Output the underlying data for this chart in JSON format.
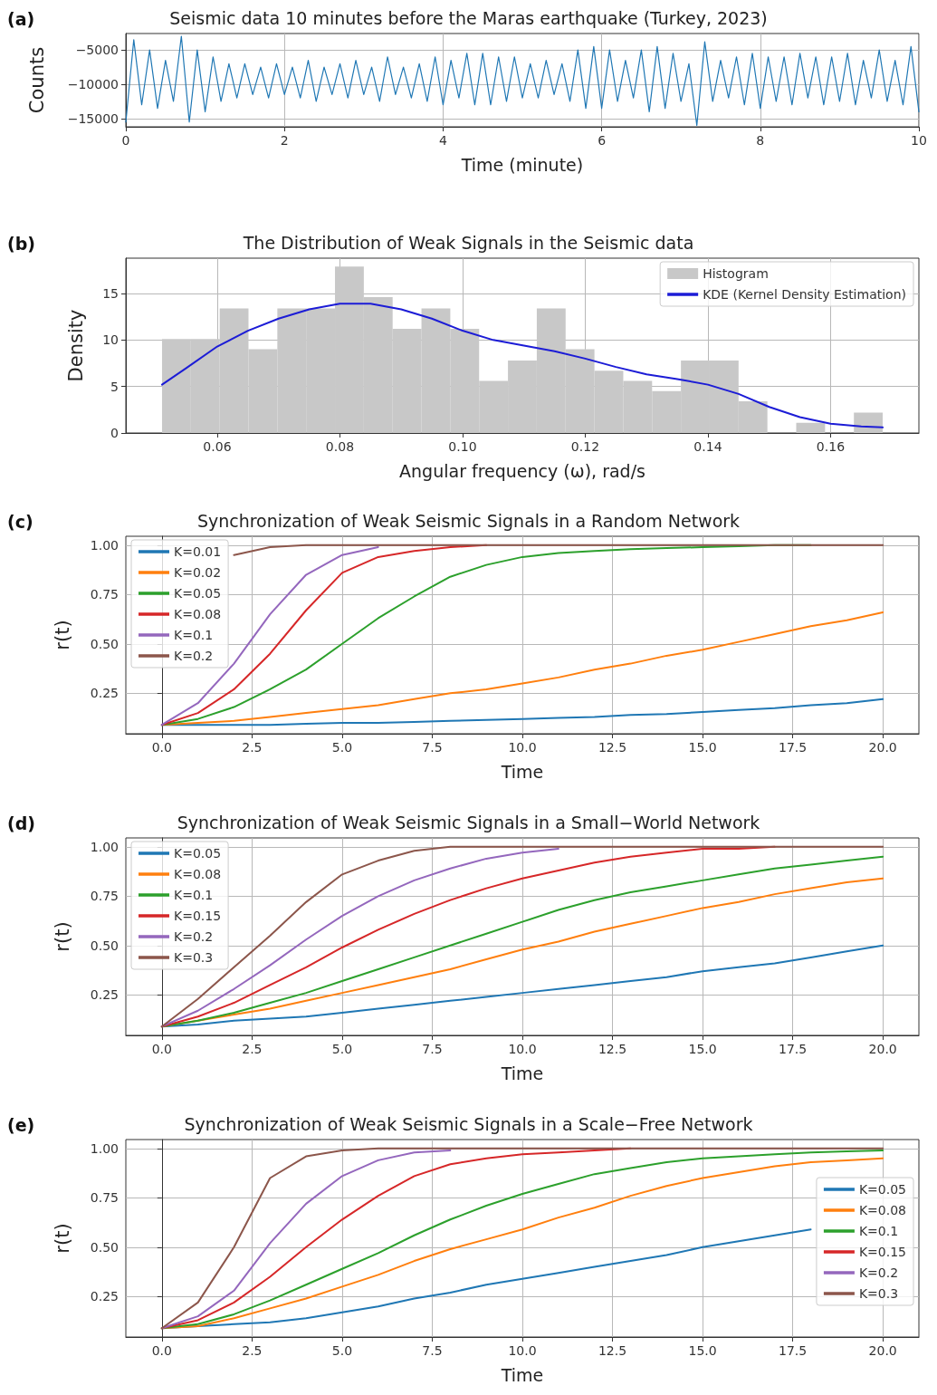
{
  "chart_data": [
    {
      "type": "line",
      "title": "Seismic data 10 minutes before the Maras earthquake (Turkey, 2023)",
      "xlabel": "Time (minute)",
      "ylabel": "Counts",
      "annotations": [
        "(a)"
      ],
      "xlim": [
        0,
        10
      ],
      "ylim": [
        -16200,
        -2600
      ],
      "xticks": [
        0,
        2,
        4,
        6,
        8,
        10
      ],
      "yticks": [
        {
          "value": -15000,
          "label": "−15000"
        },
        {
          "value": -10000,
          "label": "−10000"
        },
        {
          "value": -5000,
          "label": "−5000"
        }
      ],
      "grid": true,
      "x": [
        0,
        0.1,
        0.2,
        0.3,
        0.4,
        0.5,
        0.6,
        0.7,
        0.8,
        0.9,
        1,
        1.1,
        1.2,
        1.3,
        1.4,
        1.5,
        1.6,
        1.7,
        1.8,
        1.9,
        2,
        2.1,
        2.2,
        2.3,
        2.4,
        2.5,
        2.6,
        2.7,
        2.8,
        2.9,
        3,
        3.1,
        3.2,
        3.3,
        3.4,
        3.5,
        3.6,
        3.7,
        3.8,
        3.9,
        4,
        4.1,
        4.2,
        4.3,
        4.4,
        4.5,
        4.6,
        4.7,
        4.8,
        4.9,
        5,
        5.1,
        5.2,
        5.3,
        5.4,
        5.5,
        5.6,
        5.7,
        5.8,
        5.9,
        6,
        6.1,
        6.2,
        6.3,
        6.4,
        6.5,
        6.6,
        6.7,
        6.8,
        6.9,
        7,
        7.1,
        7.2,
        7.3,
        7.4,
        7.5,
        7.6,
        7.7,
        7.8,
        7.9,
        8,
        8.1,
        8.2,
        8.3,
        8.4,
        8.5,
        8.6,
        8.7,
        8.8,
        8.9,
        9,
        9.1,
        9.2,
        9.3,
        9.4,
        9.5,
        9.6,
        9.7,
        9.8,
        9.9,
        10
      ],
      "series": [
        {
          "color": "#1f77b4",
          "values": [
            -15500,
            -3500,
            -13000,
            -5000,
            -13500,
            -6500,
            -12500,
            -3000,
            -15500,
            -5000,
            -14000,
            -6000,
            -12500,
            -7000,
            -12000,
            -7000,
            -11500,
            -7500,
            -12000,
            -7000,
            -11500,
            -7500,
            -12000,
            -6500,
            -12500,
            -7500,
            -11500,
            -7000,
            -12000,
            -6500,
            -11500,
            -7500,
            -12500,
            -6000,
            -11500,
            -7500,
            -12000,
            -7000,
            -12500,
            -6000,
            -13000,
            -6500,
            -12000,
            -5500,
            -13000,
            -5500,
            -13000,
            -6000,
            -12500,
            -6000,
            -12000,
            -7000,
            -12000,
            -6500,
            -11500,
            -7000,
            -12500,
            -5000,
            -13500,
            -4500,
            -13500,
            -5000,
            -12500,
            -6500,
            -12000,
            -5000,
            -14000,
            -4500,
            -13500,
            -5500,
            -12500,
            -7000,
            -16000,
            -3800,
            -12500,
            -6500,
            -12000,
            -6000,
            -13000,
            -5500,
            -13500,
            -6000,
            -12500,
            -6000,
            -13000,
            -5500,
            -12000,
            -6000,
            -13000,
            -6000,
            -12500,
            -5500,
            -13000,
            -6500,
            -12000,
            -5000,
            -12500,
            -6500,
            -13000,
            -4500,
            -14000
          ]
        }
      ]
    },
    {
      "type": "histogram",
      "title": "The Distribution of Weak Signals in the Seismic data",
      "xlabel": "Angular frequency (ω), rad/s",
      "ylabel": "Density",
      "annotations": [
        "(b)"
      ],
      "xlim": [
        0.0451,
        0.1744
      ],
      "ylim": [
        0,
        18.8
      ],
      "xticks": [
        {
          "value": 0.06,
          "label": "0.06"
        },
        {
          "value": 0.08,
          "label": "0.08"
        },
        {
          "value": 0.1,
          "label": "0.10"
        },
        {
          "value": 0.12,
          "label": "0.12"
        },
        {
          "value": 0.14,
          "label": "0.14"
        },
        {
          "value": 0.16,
          "label": "0.16"
        }
      ],
      "yticks": [
        0,
        5,
        10,
        15
      ],
      "grid": true,
      "legend": "top right",
      "bins": [
        0.051,
        0.0557,
        0.0604,
        0.0651,
        0.0698,
        0.0745,
        0.0792,
        0.0839,
        0.0886,
        0.0933,
        0.098,
        0.1027,
        0.1074,
        0.1121,
        0.1168,
        0.1215,
        0.1262,
        0.1309,
        0.1356,
        0.1403,
        0.145,
        0.1497,
        0.1544,
        0.1591,
        0.1638,
        0.1685
      ],
      "series": [
        {
          "name": "Histogram",
          "color": "#c8c8c8",
          "values": [
            10.1,
            10.1,
            13.4,
            9.0,
            13.4,
            13.4,
            17.9,
            14.6,
            11.2,
            13.4,
            11.2,
            5.6,
            7.8,
            13.4,
            9.0,
            6.7,
            5.6,
            4.5,
            7.8,
            7.8,
            3.4,
            0,
            1.1,
            0,
            2.2
          ]
        },
        {
          "name": "KDE (Kernel Density Estimation)",
          "type": "line",
          "color": "#1c1cd6",
          "x": [
            0.051,
            0.055,
            0.06,
            0.065,
            0.07,
            0.075,
            0.08,
            0.085,
            0.09,
            0.095,
            0.1,
            0.105,
            0.11,
            0.115,
            0.12,
            0.125,
            0.13,
            0.135,
            0.14,
            0.145,
            0.15,
            0.155,
            0.16,
            0.165,
            0.1685
          ],
          "values": [
            5.2,
            7,
            9.3,
            11,
            12.3,
            13.3,
            13.9,
            13.9,
            13.3,
            12.3,
            11,
            10,
            9.4,
            8.8,
            8,
            7.1,
            6.3,
            5.8,
            5.2,
            4.2,
            2.8,
            1.7,
            1.0,
            0.7,
            0.6
          ]
        }
      ]
    },
    {
      "type": "line",
      "title": "Synchronization of Weak Seismic Signals in a Random Network",
      "xlabel": "Time",
      "ylabel": "r(t)",
      "annotations": [
        "(c)"
      ],
      "xlim": [
        -1,
        21
      ],
      "ylim": [
        0.045,
        1.045
      ],
      "xticks": [
        {
          "value": 0,
          "label": "0.0"
        },
        {
          "value": 2.5,
          "label": "2.5"
        },
        {
          "value": 5,
          "label": "5.0"
        },
        {
          "value": 7.5,
          "label": "7.5"
        },
        {
          "value": 10,
          "label": "10.0"
        },
        {
          "value": 12.5,
          "label": "12.5"
        },
        {
          "value": 15,
          "label": "15.0"
        },
        {
          "value": 17.5,
          "label": "17.5"
        },
        {
          "value": 20,
          "label": "20.0"
        }
      ],
      "yticks": [
        {
          "value": 0.25,
          "label": "0.25"
        },
        {
          "value": 0.5,
          "label": "0.50"
        },
        {
          "value": 0.75,
          "label": "0.75"
        },
        {
          "value": 1,
          "label": "1.00"
        }
      ],
      "grid": true,
      "legend": "top left",
      "x": [
        0,
        1,
        2,
        3,
        4,
        5,
        6,
        7,
        8,
        9,
        10,
        11,
        12,
        13,
        14,
        15,
        16,
        17,
        18,
        19,
        20
      ],
      "series": [
        {
          "name": "K=0.01",
          "color": "#1f77b4",
          "values": [
            0.09,
            0.09,
            0.09,
            0.09,
            0.095,
            0.1,
            0.1,
            0.105,
            0.11,
            0.115,
            0.12,
            0.125,
            0.13,
            0.14,
            0.145,
            0.155,
            0.165,
            0.175,
            0.19,
            0.2,
            0.22
          ]
        },
        {
          "name": "K=0.02",
          "color": "#ff7f0e",
          "values": [
            0.09,
            0.1,
            0.11,
            0.13,
            0.15,
            0.17,
            0.19,
            0.22,
            0.25,
            0.27,
            0.3,
            0.33,
            0.37,
            0.4,
            0.44,
            0.47,
            0.51,
            0.55,
            0.59,
            0.62,
            0.66
          ]
        },
        {
          "name": "K=0.05",
          "color": "#2ca02c",
          "values": [
            0.09,
            0.12,
            0.18,
            0.27,
            0.37,
            0.5,
            0.63,
            0.74,
            0.84,
            0.9,
            0.94,
            0.96,
            0.97,
            0.98,
            0.985,
            0.99,
            0.995,
            1,
            1,
            null,
            null
          ]
        },
        {
          "name": "K=0.08",
          "color": "#d62728",
          "values": [
            0.09,
            0.15,
            0.27,
            0.45,
            0.67,
            0.86,
            0.94,
            0.97,
            0.99,
            1,
            null,
            null,
            null,
            null,
            null,
            null,
            null,
            null,
            null,
            null,
            null
          ]
        },
        {
          "name": "K=0.1",
          "color": "#9467bd",
          "values": [
            0.09,
            0.2,
            0.4,
            0.65,
            0.85,
            0.95,
            0.99,
            null,
            null,
            null,
            null,
            null,
            null,
            null,
            null,
            null,
            null,
            null,
            null,
            null,
            null
          ]
        },
        {
          "name": "K=0.2",
          "color": "#8c564b",
          "values": [
            null,
            null,
            0.95,
            0.99,
            1,
            1,
            1,
            1,
            1,
            1,
            1,
            1,
            1,
            1,
            1,
            1,
            1,
            1,
            1,
            1,
            1
          ]
        }
      ]
    },
    {
      "type": "line",
      "title": "Synchronization of Weak Seismic Signals in a Small−World Network",
      "xlabel": "Time",
      "ylabel": "r(t)",
      "annotations": [
        "(d)"
      ],
      "xlim": [
        -1,
        21
      ],
      "ylim": [
        0.045,
        1.045
      ],
      "xticks": [
        {
          "value": 0,
          "label": "0.0"
        },
        {
          "value": 2.5,
          "label": "2.5"
        },
        {
          "value": 5,
          "label": "5.0"
        },
        {
          "value": 7.5,
          "label": "7.5"
        },
        {
          "value": 10,
          "label": "10.0"
        },
        {
          "value": 12.5,
          "label": "12.5"
        },
        {
          "value": 15,
          "label": "15.0"
        },
        {
          "value": 17.5,
          "label": "17.5"
        },
        {
          "value": 20,
          "label": "20.0"
        }
      ],
      "yticks": [
        {
          "value": 0.25,
          "label": "0.25"
        },
        {
          "value": 0.5,
          "label": "0.50"
        },
        {
          "value": 0.75,
          "label": "0.75"
        },
        {
          "value": 1,
          "label": "1.00"
        }
      ],
      "grid": true,
      "legend": "top left",
      "x": [
        0,
        1,
        2,
        3,
        4,
        5,
        6,
        7,
        8,
        9,
        10,
        11,
        12,
        13,
        14,
        15,
        16,
        17,
        18,
        19,
        20
      ],
      "series": [
        {
          "name": "K=0.05",
          "color": "#1f77b4",
          "values": [
            0.09,
            0.1,
            0.12,
            0.13,
            0.14,
            0.16,
            0.18,
            0.2,
            0.22,
            0.24,
            0.26,
            0.28,
            0.3,
            0.32,
            0.34,
            0.37,
            0.39,
            0.41,
            0.44,
            0.47,
            0.5
          ]
        },
        {
          "name": "K=0.08",
          "color": "#ff7f0e",
          "values": [
            0.09,
            0.12,
            0.15,
            0.18,
            0.22,
            0.26,
            0.3,
            0.34,
            0.38,
            0.43,
            0.48,
            0.52,
            0.57,
            0.61,
            0.65,
            0.69,
            0.72,
            0.76,
            0.79,
            0.82,
            0.84
          ]
        },
        {
          "name": "K=0.1",
          "color": "#2ca02c",
          "values": [
            0.09,
            0.12,
            0.16,
            0.21,
            0.26,
            0.32,
            0.38,
            0.44,
            0.5,
            0.56,
            0.62,
            0.68,
            0.73,
            0.77,
            0.8,
            0.83,
            0.86,
            0.89,
            0.91,
            0.93,
            0.95
          ]
        },
        {
          "name": "K=0.15",
          "color": "#d62728",
          "values": [
            0.09,
            0.14,
            0.21,
            0.3,
            0.39,
            0.49,
            0.58,
            0.66,
            0.73,
            0.79,
            0.84,
            0.88,
            0.92,
            0.95,
            0.97,
            0.99,
            0.99,
            1,
            null,
            null,
            null
          ]
        },
        {
          "name": "K=0.2",
          "color": "#9467bd",
          "values": [
            0.09,
            0.17,
            0.28,
            0.4,
            0.53,
            0.65,
            0.75,
            0.83,
            0.89,
            0.94,
            0.97,
            0.99,
            null,
            null,
            null,
            null,
            null,
            null,
            null,
            null,
            null
          ]
        },
        {
          "name": "K=0.3",
          "color": "#8c564b",
          "values": [
            0.09,
            0.23,
            0.39,
            0.55,
            0.72,
            0.86,
            0.93,
            0.98,
            1,
            1,
            1,
            1,
            1,
            1,
            1,
            1,
            1,
            1,
            1,
            1,
            1
          ]
        }
      ]
    },
    {
      "type": "line",
      "title": "Synchronization of Weak Seismic Signals in a Scale−Free Network",
      "xlabel": "Time",
      "ylabel": "r(t)",
      "annotations": [
        "(e)"
      ],
      "xlim": [
        -1,
        21
      ],
      "ylim": [
        0.045,
        1.045
      ],
      "xticks": [
        {
          "value": 0,
          "label": "0.0"
        },
        {
          "value": 2.5,
          "label": "2.5"
        },
        {
          "value": 5,
          "label": "5.0"
        },
        {
          "value": 7.5,
          "label": "7.5"
        },
        {
          "value": 10,
          "label": "10.0"
        },
        {
          "value": 12.5,
          "label": "12.5"
        },
        {
          "value": 15,
          "label": "15.0"
        },
        {
          "value": 17.5,
          "label": "17.5"
        },
        {
          "value": 20,
          "label": "20.0"
        }
      ],
      "yticks": [
        {
          "value": 0.25,
          "label": "0.25"
        },
        {
          "value": 0.5,
          "label": "0.50"
        },
        {
          "value": 0.75,
          "label": "0.75"
        },
        {
          "value": 1,
          "label": "1.00"
        }
      ],
      "grid": true,
      "legend": "right",
      "x": [
        0,
        1,
        2,
        3,
        4,
        5,
        6,
        7,
        8,
        9,
        10,
        11,
        12,
        13,
        14,
        15,
        16,
        17,
        18,
        19,
        20
      ],
      "series": [
        {
          "name": "K=0.05",
          "color": "#1f77b4",
          "values": [
            0.09,
            0.1,
            0.11,
            0.12,
            0.14,
            0.17,
            0.2,
            0.24,
            0.27,
            0.31,
            0.34,
            0.37,
            0.4,
            0.43,
            0.46,
            0.5,
            0.53,
            0.56,
            0.59,
            null,
            null
          ]
        },
        {
          "name": "K=0.08",
          "color": "#ff7f0e",
          "values": [
            0.09,
            0.1,
            0.14,
            0.19,
            0.24,
            0.3,
            0.36,
            0.43,
            0.49,
            0.54,
            0.59,
            0.65,
            0.7,
            0.76,
            0.81,
            0.85,
            0.88,
            0.91,
            0.93,
            0.94,
            0.95
          ]
        },
        {
          "name": "K=0.1",
          "color": "#2ca02c",
          "values": [
            0.09,
            0.11,
            0.16,
            0.23,
            0.31,
            0.39,
            0.47,
            0.56,
            0.64,
            0.71,
            0.77,
            0.82,
            0.87,
            0.9,
            0.93,
            0.95,
            0.96,
            0.97,
            0.98,
            0.985,
            0.99
          ]
        },
        {
          "name": "K=0.15",
          "color": "#d62728",
          "values": [
            0.09,
            0.13,
            0.22,
            0.35,
            0.5,
            0.64,
            0.76,
            0.86,
            0.92,
            0.95,
            0.97,
            0.98,
            0.99,
            1,
            null,
            null,
            null,
            null,
            null,
            null,
            null
          ]
        },
        {
          "name": "K=0.2",
          "color": "#9467bd",
          "values": [
            0.09,
            0.15,
            0.28,
            0.52,
            0.72,
            0.86,
            0.94,
            0.98,
            0.99,
            null,
            null,
            null,
            null,
            null,
            null,
            null,
            null,
            null,
            null,
            null,
            null
          ]
        },
        {
          "name": "K=0.3",
          "color": "#8c564b",
          "values": [
            0.09,
            0.22,
            0.5,
            0.85,
            0.96,
            0.99,
            1,
            1,
            1,
            1,
            1,
            1,
            1,
            1,
            1,
            1,
            1,
            1,
            1,
            1,
            1
          ]
        }
      ]
    }
  ]
}
